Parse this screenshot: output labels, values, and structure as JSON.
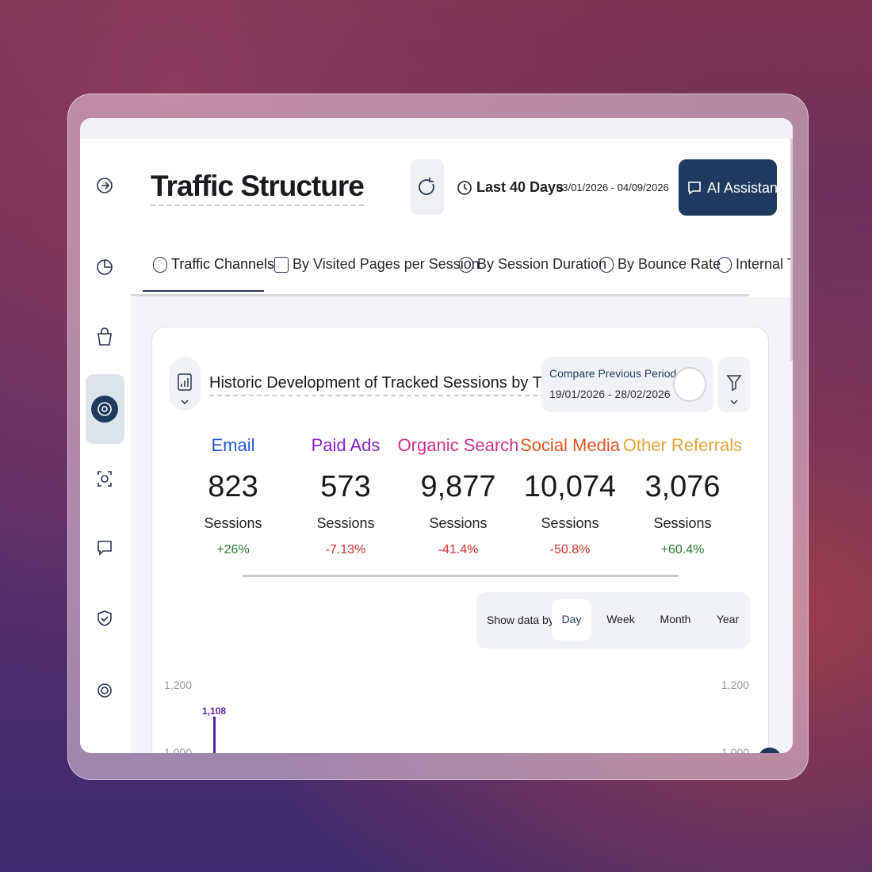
{
  "header": {
    "title": "Traffic Structure",
    "period": "Last 40 Days",
    "date_range": "03/01/2026 - 04/09/2026",
    "ai_button": "AI Assistant"
  },
  "tabs": [
    "Traffic Channels",
    "By Visited Pages per Session",
    "By Session Duration",
    "By Bounce Rate",
    "Internal Tra"
  ],
  "card": {
    "title": "Historic Development of Tracked Sessions by Traffic ...",
    "compare": {
      "label": "Compare Previous Period",
      "range": "19/01/2026 - 28/02/2026"
    },
    "metrics": [
      {
        "name": "Email",
        "value": "823",
        "unit": "Sessions",
        "change": "+26%",
        "color": "#2457d6"
      },
      {
        "name": "Paid Ads",
        "value": "573",
        "unit": "Sessions",
        "change": "-7.13%",
        "color": "#8a1fd1"
      },
      {
        "name": "Organic Search",
        "value": "9,877",
        "unit": "Sessions",
        "change": "-41.4%",
        "color": "#d0348a"
      },
      {
        "name": "Social Media",
        "value": "10,074",
        "unit": "Sessions",
        "change": "-50.8%",
        "color": "#e0551f"
      },
      {
        "name": "Other Referrals",
        "value": "3,076",
        "unit": "Sessions",
        "change": "+60.4%",
        "color": "#e8a53a"
      }
    ],
    "positive_color": "#2e7d32",
    "negative_color": "#d32f2f",
    "show_data_by": {
      "label": "Show data by:",
      "options": [
        "Day",
        "Week",
        "Month",
        "Year"
      ],
      "selected": 0
    }
  },
  "chart_preview": {
    "type": "bar",
    "yticks": [
      {
        "value": 1200,
        "label": "1,200"
      },
      {
        "value": 1000,
        "label": "1,000"
      }
    ],
    "values": [
      1108
    ],
    "value_labels": [
      "1,108"
    ],
    "color": "#5b1fb0"
  }
}
